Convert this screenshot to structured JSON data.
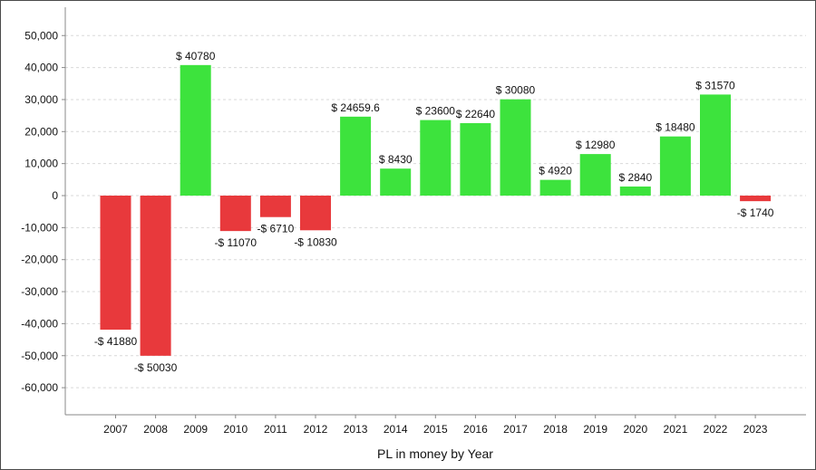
{
  "chart_data": {
    "type": "bar",
    "title": "",
    "xlabel": "PL in money by Year",
    "ylabel": "",
    "ylim": [
      -70000,
      55000
    ],
    "yticks": [
      50000,
      40000,
      30000,
      20000,
      10000,
      0,
      -10000,
      -20000,
      -30000,
      -40000,
      -50000,
      -60000
    ],
    "ytick_labels": [
      "50,000",
      "40,000",
      "30,000",
      "20,000",
      "10,000",
      "0",
      "-10,000",
      "-20,000",
      "-30,000",
      "-40,000",
      "-50,000",
      "-60,000"
    ],
    "grid": true,
    "categories": [
      "2007",
      "2008",
      "2009",
      "2010",
      "2011",
      "2012",
      "2013",
      "2014",
      "2015",
      "2016",
      "2017",
      "2018",
      "2019",
      "2020",
      "2021",
      "2022",
      "2023"
    ],
    "values": [
      -41880,
      -50030,
      40780,
      -11070,
      -6710,
      -10830,
      24659.6,
      8430,
      23600,
      22640,
      30080,
      4920,
      12980,
      2840,
      18480,
      31570,
      -1740
    ],
    "data_labels": [
      "-$ 41880",
      "-$ 50030",
      "$ 40780",
      "-$ 11070",
      "-$ 6710",
      "-$ 10830",
      "$ 24659.6",
      "$ 8430",
      "$ 23600",
      "$ 22640",
      "$ 30080",
      "$ 4920",
      "$ 12980",
      "$ 2840",
      "$ 18480",
      "$ 31570",
      "-$ 1740"
    ],
    "colors": {
      "positive": "#3de33d",
      "negative": "#e8393c",
      "grid": "#d9d9d9",
      "axis": "#888888"
    }
  }
}
